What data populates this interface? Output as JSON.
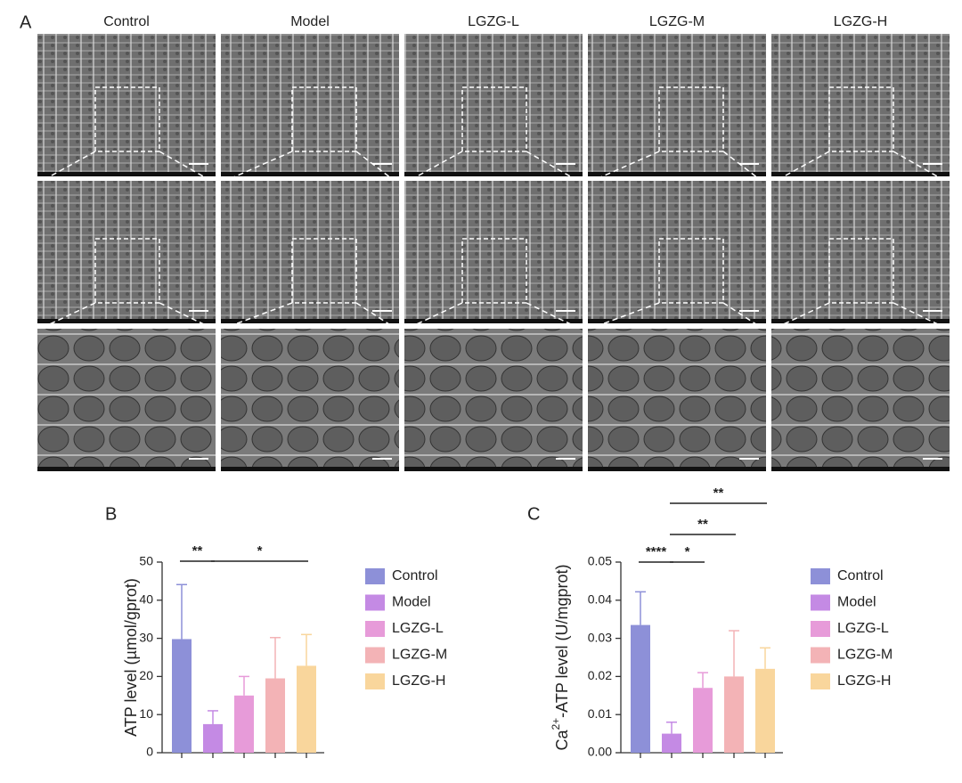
{
  "panel_labels": [
    "A",
    "B",
    "C"
  ],
  "columns": [
    "Control",
    "Model",
    "LGZG-L",
    "LGZG-M",
    "LGZG-H"
  ],
  "chart_data": [
    {
      "type": "bar",
      "y_label": "ATP level (µmol/gprot)",
      "categories": [
        "Control",
        "Model",
        "LGZG-L",
        "LGZG-M",
        "LGZG-H"
      ],
      "values": [
        29.8,
        7.5,
        15,
        19.5,
        22.8
      ],
      "errors": [
        14.3,
        3.5,
        5,
        10.7,
        8.2
      ],
      "colors": [
        "#8d90d8",
        "#c48ae4",
        "#e79bd9",
        "#f3b3b6",
        "#f9d69c"
      ],
      "ylim": [
        0,
        50
      ],
      "yticks": [
        0,
        10,
        20,
        30,
        40,
        50
      ],
      "annotations": [
        {
          "text": "**"
        },
        {
          "text": "*"
        }
      ],
      "legend": "right"
    },
    {
      "type": "bar",
      "y_label": {
        "base": "Ca",
        "sup": "2+",
        "rest": "-ATP level (U/mgprot)"
      },
      "categories": [
        "Control",
        "Model",
        "LGZG-L",
        "LGZG-M",
        "LGZG-H"
      ],
      "values": [
        0.0335,
        0.005,
        0.017,
        0.02,
        0.022
      ],
      "errors": [
        0.0087,
        0.003,
        0.004,
        0.012,
        0.0055
      ],
      "colors": [
        "#8d90d8",
        "#c48ae4",
        "#e79bd9",
        "#f3b3b6",
        "#f9d69c"
      ],
      "ylim": [
        0,
        0.05
      ],
      "yticks": [
        {
          "value": 0,
          "label": "0.00"
        },
        0.01,
        0.02,
        0.03,
        0.04,
        0.05
      ],
      "annotations": [
        {
          "text": "****"
        },
        {
          "text": "*"
        },
        {
          "text": "**"
        },
        {
          "text": "**"
        }
      ],
      "legend": "right"
    }
  ]
}
